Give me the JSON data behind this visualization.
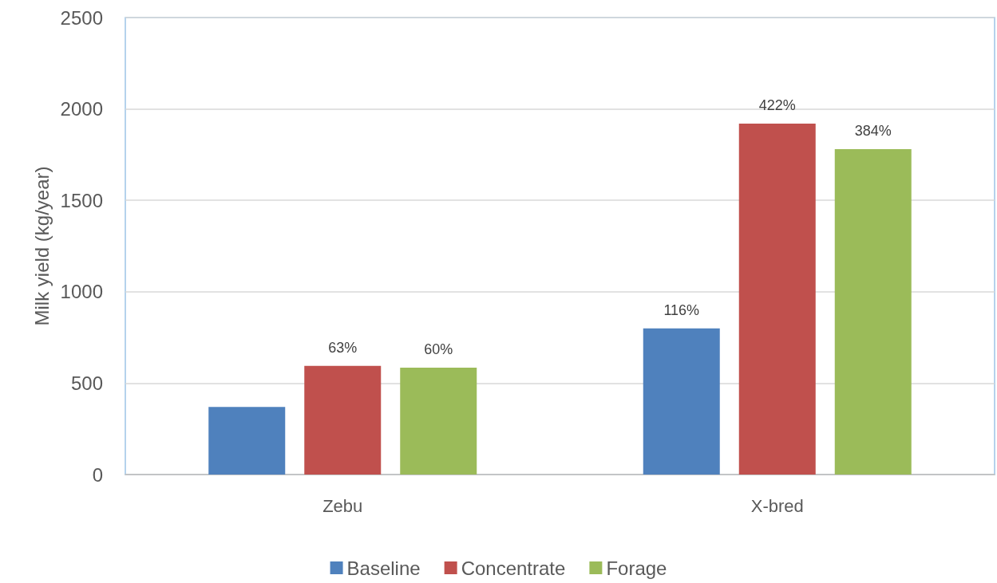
{
  "chart_data": {
    "type": "bar",
    "ylabel": "Milk yield (kg/year)",
    "categories": [
      "Zebu",
      "X-bred"
    ],
    "series": [
      {
        "name": "Baseline",
        "color": "#4f81bd",
        "values": [
          370,
          800
        ]
      },
      {
        "name": "Concentrate",
        "color": "#c0504d",
        "values": [
          595,
          1920
        ]
      },
      {
        "name": "Forage",
        "color": "#9bbb59",
        "values": [
          585,
          1780
        ]
      }
    ],
    "annotations": [
      {
        "text": "63%",
        "y": 595
      },
      {
        "text": "60%",
        "y": 585
      },
      {
        "text": "116%",
        "y": 800
      },
      {
        "text": "422%",
        "y": 1920
      },
      {
        "text": "384%",
        "y": 1780
      }
    ],
    "ylim": [
      0,
      2500
    ],
    "yticks": [
      0,
      500,
      1000,
      1500,
      2000,
      2500
    ],
    "grid": "y",
    "legend": "bottom"
  }
}
